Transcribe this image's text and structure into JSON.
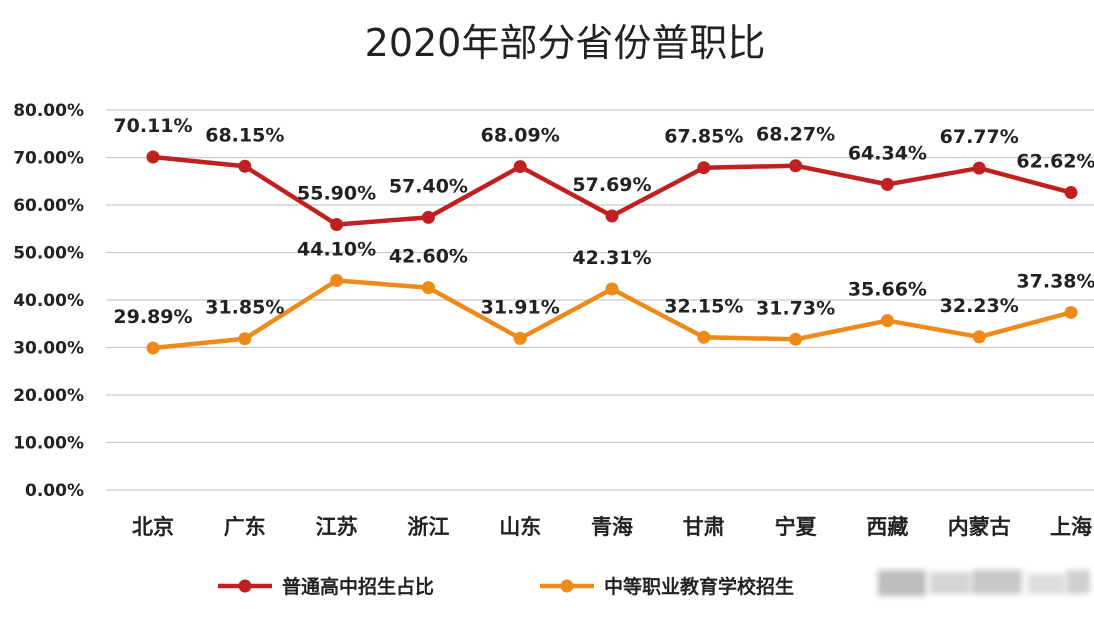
{
  "chart_data": {
    "type": "line",
    "title": "2020年部分省份普职比",
    "categories": [
      "北京",
      "广东",
      "江苏",
      "浙江",
      "山东",
      "青海",
      "甘肃",
      "宁夏",
      "西藏",
      "内蒙古",
      "上海"
    ],
    "yticks": [
      "0.00%",
      "10.00%",
      "20.00%",
      "30.00%",
      "40.00%",
      "50.00%",
      "60.00%",
      "70.00%",
      "80.00%"
    ],
    "ylim": [
      0,
      80
    ],
    "grid": true,
    "legend_position": "bottom",
    "series": [
      {
        "name": "普通高中招生占比",
        "color": "#c0201f",
        "values": [
          70.11,
          68.15,
          55.9,
          57.4,
          68.09,
          57.69,
          67.85,
          68.27,
          64.34,
          67.77,
          62.62
        ],
        "labels": [
          "70.11%",
          "68.15%",
          "55.90%",
          "57.40%",
          "68.09%",
          "57.69%",
          "67.85%",
          "68.27%",
          "64.34%",
          "67.77%",
          "62.62%"
        ]
      },
      {
        "name": "中等职业教育学校招生",
        "color": "#ee8a1a",
        "values": [
          29.89,
          31.85,
          44.1,
          42.6,
          31.91,
          42.31,
          32.15,
          31.73,
          35.66,
          32.23,
          37.38
        ],
        "labels": [
          "29.89%",
          "31.85%",
          "44.10%",
          "42.60%",
          "31.91%",
          "42.31%",
          "32.15%",
          "31.73%",
          "35.66%",
          "32.23%",
          "37.38%"
        ]
      }
    ]
  }
}
